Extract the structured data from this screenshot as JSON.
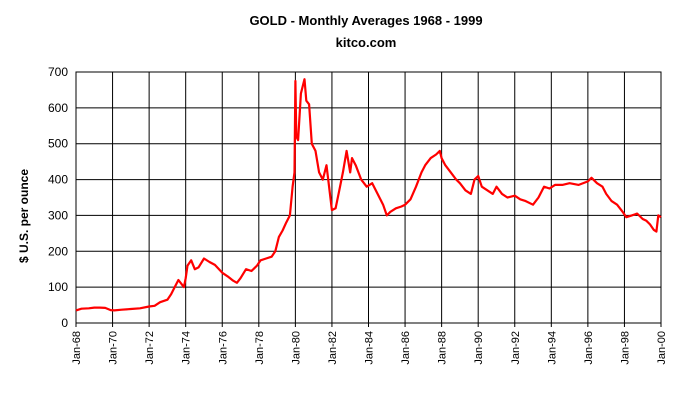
{
  "chart_data": {
    "type": "line",
    "title": "GOLD - Monthly Averages  1968 - 1999",
    "subtitle": "kitco.com",
    "ylabel": "$ U.S. per ounce",
    "xlabel": "",
    "ylim": [
      0,
      700
    ],
    "yticks": [
      0,
      100,
      200,
      300,
      400,
      500,
      600,
      700
    ],
    "xlim": [
      1968,
      2000
    ],
    "xticks": [
      {
        "value": 1968,
        "label": "Jan-68"
      },
      {
        "value": 1970,
        "label": "Jan-70"
      },
      {
        "value": 1972,
        "label": "Jan-72"
      },
      {
        "value": 1974,
        "label": "Jan-74"
      },
      {
        "value": 1976,
        "label": "Jan-76"
      },
      {
        "value": 1978,
        "label": "Jan-78"
      },
      {
        "value": 1980,
        "label": "Jan-80"
      },
      {
        "value": 1982,
        "label": "Jan-82"
      },
      {
        "value": 1984,
        "label": "Jan-84"
      },
      {
        "value": 1986,
        "label": "Jan-86"
      },
      {
        "value": 1988,
        "label": "Jan-88"
      },
      {
        "value": 1990,
        "label": "Jan-90"
      },
      {
        "value": 1992,
        "label": "Jan-92"
      },
      {
        "value": 1994,
        "label": "Jan-94"
      },
      {
        "value": 1996,
        "label": "Jan-96"
      },
      {
        "value": 1998,
        "label": "Jan-98"
      },
      {
        "value": 2000,
        "label": "Jan-00"
      }
    ],
    "grid": true,
    "series": [
      {
        "name": "Gold monthly average",
        "color": "#ff0000",
        "x": [
          1968.0,
          1968.3,
          1968.7,
          1969.0,
          1969.3,
          1969.6,
          1969.9,
          1970.1,
          1970.5,
          1971.0,
          1971.5,
          1972.0,
          1972.3,
          1972.6,
          1973.0,
          1973.2,
          1973.4,
          1973.6,
          1973.9,
          1974.0,
          1974.1,
          1974.3,
          1974.5,
          1974.7,
          1975.0,
          1975.3,
          1975.6,
          1976.0,
          1976.3,
          1976.6,
          1976.8,
          1977.0,
          1977.3,
          1977.6,
          1977.9,
          1978.1,
          1978.4,
          1978.7,
          1978.9,
          1979.1,
          1979.3,
          1979.5,
          1979.7,
          1979.85,
          1979.95,
          1980.0,
          1980.05,
          1980.15,
          1980.3,
          1980.5,
          1980.6,
          1980.75,
          1980.9,
          1981.1,
          1981.3,
          1981.5,
          1981.7,
          1982.0,
          1982.2,
          1982.4,
          1982.6,
          1982.8,
          1983.0,
          1983.1,
          1983.3,
          1983.6,
          1983.9,
          1984.2,
          1984.5,
          1984.8,
          1985.0,
          1985.2,
          1985.5,
          1985.8,
          1986.0,
          1986.3,
          1986.6,
          1986.9,
          1987.1,
          1987.4,
          1987.7,
          1987.9,
          1988.0,
          1988.2,
          1988.5,
          1988.8,
          1989.0,
          1989.3,
          1989.6,
          1989.8,
          1990.0,
          1990.2,
          1990.5,
          1990.8,
          1991.0,
          1991.3,
          1991.6,
          1992.0,
          1992.3,
          1992.6,
          1993.0,
          1993.3,
          1993.6,
          1993.9,
          1994.2,
          1994.6,
          1995.0,
          1995.5,
          1996.0,
          1996.2,
          1996.5,
          1996.8,
          1997.0,
          1997.3,
          1997.6,
          1997.9,
          1998.1,
          1998.4,
          1998.7,
          1999.0,
          1999.2,
          1999.4,
          1999.6,
          1999.75,
          1999.85,
          2000.0
        ],
        "values": [
          35,
          40,
          41,
          43,
          43,
          42,
          36,
          35,
          37,
          39,
          41,
          46,
          48,
          58,
          65,
          80,
          100,
          120,
          100,
          125,
          160,
          175,
          150,
          155,
          180,
          170,
          162,
          140,
          130,
          118,
          112,
          125,
          150,
          145,
          160,
          175,
          180,
          185,
          200,
          240,
          258,
          280,
          300,
          380,
          420,
          675,
          520,
          510,
          640,
          680,
          620,
          610,
          500,
          480,
          420,
          400,
          440,
          315,
          320,
          370,
          420,
          480,
          420,
          460,
          440,
          400,
          380,
          390,
          360,
          330,
          300,
          310,
          320,
          325,
          330,
          345,
          380,
          420,
          440,
          460,
          470,
          480,
          460,
          440,
          420,
          400,
          390,
          370,
          360,
          400,
          410,
          380,
          370,
          360,
          380,
          360,
          350,
          355,
          345,
          340,
          330,
          350,
          380,
          375,
          385,
          385,
          390,
          385,
          395,
          405,
          390,
          380,
          360,
          340,
          330,
          310,
          295,
          300,
          305,
          290,
          285,
          275,
          260,
          255,
          300,
          295
        ]
      }
    ]
  }
}
